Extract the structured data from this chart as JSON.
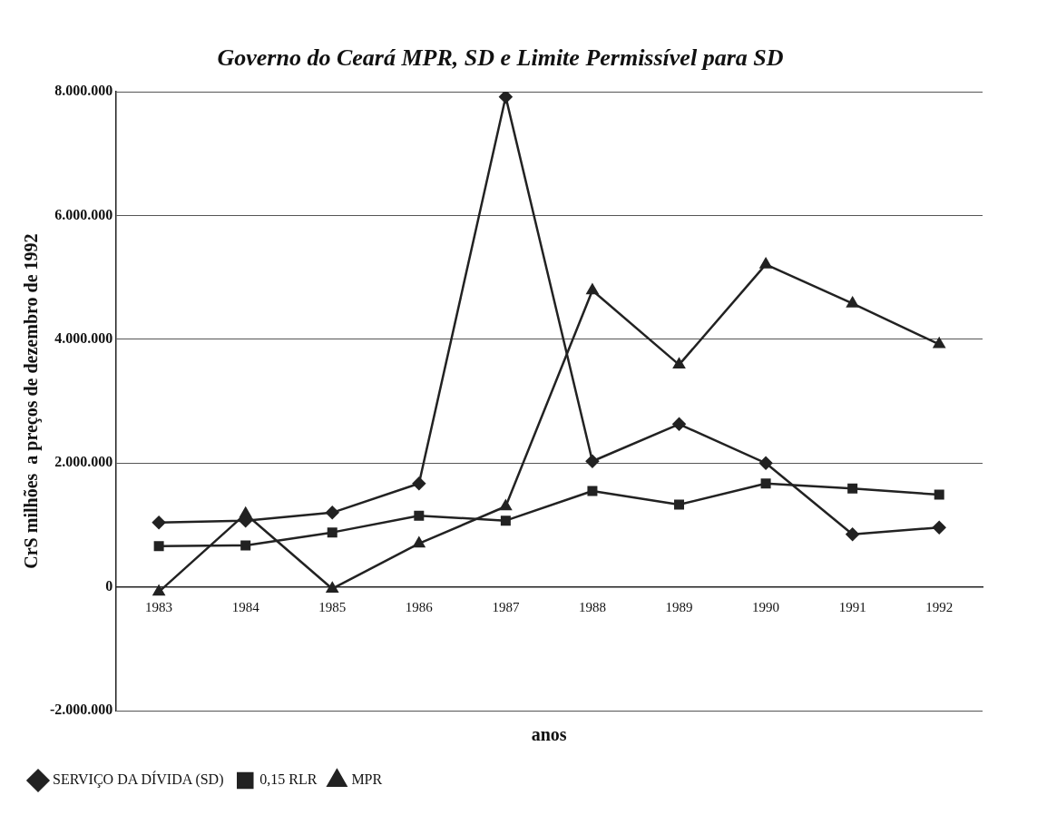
{
  "chart_data": {
    "type": "line",
    "title": "Governo do Ceará MPR, SD e Limite Permissível para SD",
    "xlabel": "anos",
    "ylabel": "CrS milhões  a preços de dezembro de 1992",
    "categories": [
      "1983",
      "1984",
      "1985",
      "1986",
      "1987",
      "1988",
      "1989",
      "1990",
      "1991",
      "1992"
    ],
    "series": [
      {
        "name": "SERVIÇO DA DÍVIDA (SD)",
        "color": "#222222",
        "marker": "diamond",
        "values": [
          1040000,
          1070000,
          1200000,
          1670000,
          7920000,
          2030000,
          2630000,
          2000000,
          850000,
          960000
        ]
      },
      {
        "name": "0,15 RLR",
        "color": "#222222",
        "marker": "square",
        "values": [
          660000,
          670000,
          880000,
          1150000,
          1070000,
          1550000,
          1330000,
          1670000,
          1590000,
          1490000
        ]
      },
      {
        "name": "MPR",
        "color": "#222222",
        "marker": "triangle",
        "values": [
          -80000,
          1180000,
          -30000,
          700000,
          1300000,
          4790000,
          3590000,
          5210000,
          4580000,
          3920000
        ]
      }
    ],
    "ylim": [
      -2000000,
      8000000
    ],
    "yticks": [
      {
        "value": -2000000,
        "label": "-2.000.000"
      },
      {
        "value": 0,
        "label": "0"
      },
      {
        "value": 2000000,
        "label": "2.000.000"
      },
      {
        "value": 4000000,
        "label": "4.000.000"
      },
      {
        "value": 6000000,
        "label": "6.000.000"
      },
      {
        "value": 8000000,
        "label": "8.000.000"
      }
    ],
    "grid": "y",
    "legend": "bottom left",
    "line_style": "solid"
  }
}
